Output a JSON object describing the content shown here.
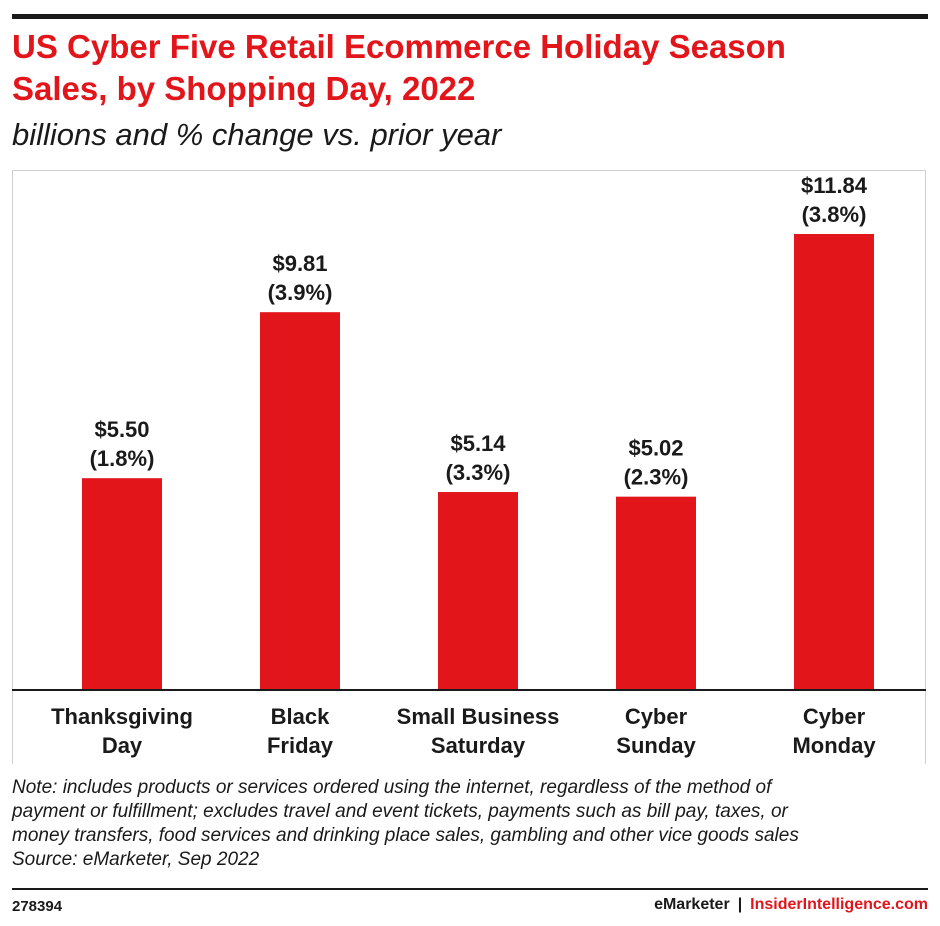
{
  "header": {
    "title_line1": "US Cyber Five Retail Ecommerce Holiday Season",
    "title_line2": "Sales, by Shopping Day, 2022",
    "subtitle": "billions and % change vs. prior year"
  },
  "colors": {
    "accent": "#e2151b",
    "text": "#1a1a1a",
    "bar": "#e2151b"
  },
  "chart_data": {
    "type": "bar",
    "title": "US Cyber Five Retail Ecommerce Holiday Season Sales, by Shopping Day, 2022",
    "subtitle": "billions and % change vs. prior year",
    "categories": [
      [
        "Thanksgiving",
        "Day"
      ],
      [
        "Black",
        "Friday"
      ],
      [
        "Small Business",
        "Saturday"
      ],
      [
        "Cyber",
        "Sunday"
      ],
      [
        "Cyber",
        "Monday"
      ]
    ],
    "values": [
      5.5,
      9.81,
      5.14,
      5.02,
      11.84
    ],
    "value_labels": [
      "$5.50",
      "$9.81",
      "$5.14",
      "$5.02",
      "$11.84"
    ],
    "change_labels": [
      "(1.8%)",
      "(3.9%)",
      "(3.3%)",
      "(2.3%)",
      "(3.8%)"
    ],
    "ylim": [
      0,
      11.84
    ],
    "grid": false,
    "legend": "none"
  },
  "footer": {
    "note_lines": [
      "Note: includes products or services ordered using the internet, regardless of the method of",
      "payment or fulfillment; excludes travel and event tickets, payments such as bill pay, taxes, or",
      "money transfers, food services and drinking place sales, gambling and other vice goods sales"
    ],
    "source": "Source: eMarketer, Sep 2022",
    "chart_id": "278394",
    "brand_primary": "eMarketer",
    "brand_separator": "|",
    "brand_secondary": "InsiderIntelligence.com"
  }
}
